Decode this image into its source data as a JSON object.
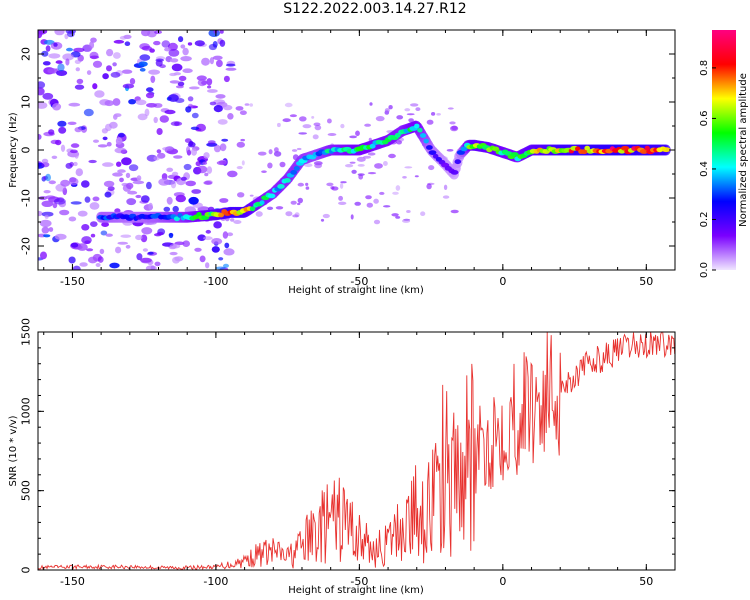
{
  "chart_data": [
    {
      "type": "heatmap",
      "title": "S122.2022.003.14.27.R12",
      "xlabel": "Height of straight line (km)",
      "ylabel": "Frequency (Hz)",
      "xlim": [
        -162,
        60
      ],
      "ylim": [
        -25,
        25
      ],
      "xticks": [
        -150,
        -100,
        -50,
        0,
        50
      ],
      "yticks": [
        -20,
        -10,
        0,
        10,
        20
      ],
      "colorbar": {
        "label": "Normalized spectral amplitude",
        "range": [
          0,
          0.95
        ],
        "ticks": [
          0.0,
          0.2,
          0.4,
          0.6,
          0.8
        ],
        "colors": [
          "#f0e6ff",
          "#7a00ff",
          "#0000ff",
          "#00ffff",
          "#00ff00",
          "#ffff00",
          "#ff0000",
          "#ff0080"
        ]
      },
      "ridge": {
        "name": "frequency ridge",
        "x": [
          -140,
          -130,
          -120,
          -110,
          -100,
          -95,
          -90,
          -85,
          -80,
          -75,
          -70,
          -65,
          -60,
          -55,
          -50,
          -45,
          -40,
          -35,
          -30,
          -25,
          -20,
          -17,
          -15,
          -12,
          -10,
          -5,
          0,
          5,
          10,
          20,
          30,
          40,
          50,
          57
        ],
        "y": [
          -14,
          -14,
          -14,
          -14,
          -13.5,
          -13,
          -13,
          -11,
          -9,
          -6,
          -2,
          -1,
          0,
          0,
          0,
          1,
          2,
          4,
          5,
          0,
          -3,
          -5,
          -1,
          1,
          1,
          0.5,
          -0.5,
          -1.5,
          0,
          0,
          0,
          0,
          0,
          0
        ],
        "amplitude": [
          0.35,
          0.3,
          0.35,
          0.5,
          0.7,
          0.85,
          0.8,
          0.55,
          0.5,
          0.5,
          0.45,
          0.4,
          0.5,
          0.55,
          0.6,
          0.55,
          0.55,
          0.5,
          0.6,
          0.3,
          0.2,
          0.2,
          0.25,
          0.6,
          0.7,
          0.65,
          0.6,
          0.55,
          0.7,
          0.85,
          0.9,
          0.95,
          0.9,
          0.85
        ]
      }
    },
    {
      "type": "line",
      "xlabel": "Height of straight line (km)",
      "ylabel": "SNR (10 * v/v)",
      "xlim": [
        -162,
        60
      ],
      "ylim": [
        0,
        1500
      ],
      "xticks": [
        -150,
        -100,
        -50,
        0,
        50
      ],
      "yticks": [
        0,
        500,
        1000,
        1500
      ],
      "line_color": "#e8322f",
      "series": [
        {
          "x": [
            -162,
            -150,
            -140,
            -130,
            -120,
            -110,
            -100,
            -95,
            -90,
            -85,
            -80,
            -75,
            -70,
            -65,
            -60,
            -55,
            -50,
            -45,
            -40,
            -35,
            -30,
            -25,
            -20,
            -15,
            -10,
            -5,
            0,
            5,
            10,
            15,
            20,
            25,
            30,
            35,
            40,
            45,
            50,
            55,
            60
          ],
          "values": [
            15,
            20,
            20,
            20,
            15,
            15,
            20,
            35,
            60,
            100,
            120,
            80,
            150,
            250,
            300,
            320,
            200,
            120,
            160,
            280,
            360,
            420,
            500,
            600,
            700,
            800,
            930,
            980,
            1050,
            1100,
            1150,
            1220,
            1300,
            1340,
            1380,
            1410,
            1420,
            1440,
            1420
          ]
        }
      ]
    }
  ]
}
